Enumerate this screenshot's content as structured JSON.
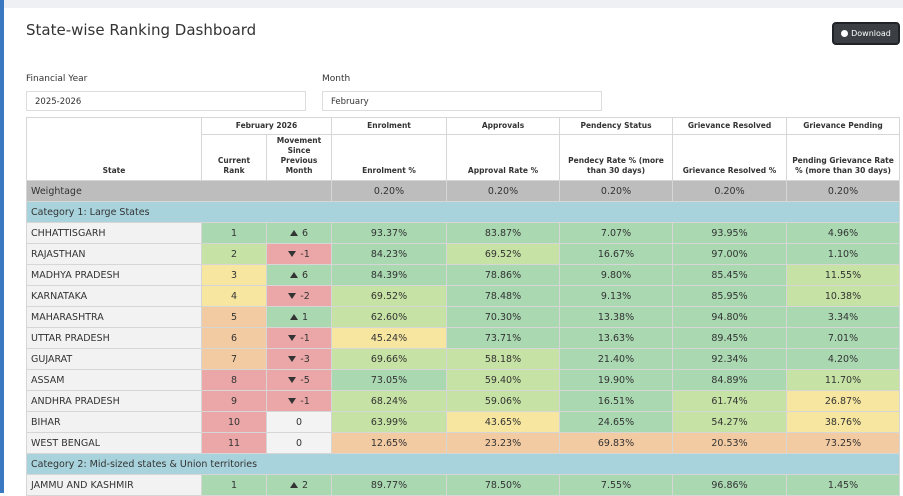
{
  "title": "State-wise Ranking Dashboard",
  "download": "Download",
  "filters": [
    {
      "label": "Financial Year",
      "value": "2025-2026"
    },
    {
      "label": "Month",
      "value": "February"
    }
  ],
  "table": {
    "header": {
      "period": "February 2026",
      "groups": [
        "Enrolment",
        "Approvals",
        "Pendency Status",
        "Grievance Resolved",
        "Grievance Pending"
      ],
      "columns": [
        "State",
        "Current Rank",
        "Movement Since Previous Month",
        "Enrolment %",
        "Approval Rate %",
        "Pendecy Rate % (more than 30 days)",
        "Grievance Resolved %",
        "Pending Grievance Rate % (more than 30 days)"
      ]
    },
    "weightage": {
      "label": "Weightage",
      "values": [
        "0.20%",
        "0.20%",
        "0.20%",
        "0.20%",
        "0.20%"
      ]
    },
    "rows": [
      {
        "category": "Category 1: Large States"
      },
      {
        "state": "CHHATTISGARH",
        "rank": 1,
        "movement": 6,
        "values": [
          "93.37%",
          "83.87%",
          "7.07%",
          "93.95%",
          "4.96%"
        ],
        "colors": [
          "#a9d8b1",
          "#a9d8b1",
          "#a9d8b1",
          "#a9d8b1",
          "#a9d8b1",
          "#a9d8b1",
          "#a9d8b1"
        ]
      },
      {
        "state": "RAJASTHAN",
        "rank": 2,
        "movement": -1,
        "values": [
          "84.23%",
          "69.52%",
          "16.67%",
          "97.00%",
          "1.10%"
        ],
        "colors": [
          "#c6e2a4",
          "#eba7a7",
          "#a9d8b1",
          "#c6e2a4",
          "#a9d8b1",
          "#a9d8b1",
          "#a9d8b1"
        ]
      },
      {
        "state": "MADHYA PRADESH",
        "rank": 3,
        "movement": 6,
        "values": [
          "84.39%",
          "78.86%",
          "9.80%",
          "85.45%",
          "11.55%"
        ],
        "colors": [
          "#f6e6a0",
          "#a9d8b1",
          "#a9d8b1",
          "#a9d8b1",
          "#a9d8b1",
          "#a9d8b1",
          "#c6e2a4"
        ]
      },
      {
        "state": "KARNATAKA",
        "rank": 4,
        "movement": -2,
        "values": [
          "69.52%",
          "78.48%",
          "9.13%",
          "85.95%",
          "10.38%"
        ],
        "colors": [
          "#f6e6a0",
          "#eba7a7",
          "#c6e2a4",
          "#a9d8b1",
          "#a9d8b1",
          "#a9d8b1",
          "#c6e2a4"
        ]
      },
      {
        "state": "MAHARASHTRA",
        "rank": 5,
        "movement": 1,
        "values": [
          "62.60%",
          "70.30%",
          "13.38%",
          "94.80%",
          "3.34%"
        ],
        "colors": [
          "#f3cba2",
          "#a9d8b1",
          "#c6e2a4",
          "#a9d8b1",
          "#a9d8b1",
          "#a9d8b1",
          "#a9d8b1"
        ]
      },
      {
        "state": "UTTAR PRADESH",
        "rank": 6,
        "movement": -1,
        "values": [
          "45.24%",
          "73.71%",
          "13.63%",
          "89.45%",
          "7.01%"
        ],
        "colors": [
          "#f3cba2",
          "#eba7a7",
          "#f6e6a0",
          "#a9d8b1",
          "#a9d8b1",
          "#a9d8b1",
          "#a9d8b1"
        ]
      },
      {
        "state": "GUJARAT",
        "rank": 7,
        "movement": -3,
        "values": [
          "69.66%",
          "58.18%",
          "21.40%",
          "92.34%",
          "4.20%"
        ],
        "colors": [
          "#f3cba2",
          "#eba7a7",
          "#c6e2a4",
          "#c6e2a4",
          "#a9d8b1",
          "#a9d8b1",
          "#a9d8b1"
        ]
      },
      {
        "state": "ASSAM",
        "rank": 8,
        "movement": -5,
        "values": [
          "73.05%",
          "59.40%",
          "19.90%",
          "84.89%",
          "11.70%"
        ],
        "colors": [
          "#eba7a7",
          "#eba7a7",
          "#a9d8b1",
          "#c6e2a4",
          "#a9d8b1",
          "#a9d8b1",
          "#c6e2a4"
        ]
      },
      {
        "state": "ANDHRA PRADESH",
        "rank": 9,
        "movement": -1,
        "values": [
          "68.24%",
          "59.06%",
          "16.51%",
          "61.74%",
          "26.87%"
        ],
        "colors": [
          "#eba7a7",
          "#eba7a7",
          "#c6e2a4",
          "#c6e2a4",
          "#a9d8b1",
          "#c6e2a4",
          "#f6e6a0"
        ]
      },
      {
        "state": "BIHAR",
        "rank": 10,
        "movement": 0,
        "values": [
          "63.99%",
          "43.65%",
          "24.65%",
          "54.27%",
          "38.76%"
        ],
        "colors": [
          "#eba7a7",
          "#f3f3f3",
          "#c6e2a4",
          "#f6e6a0",
          "#a9d8b1",
          "#c6e2a4",
          "#f6e6a0"
        ]
      },
      {
        "state": "WEST BENGAL",
        "rank": 11,
        "movement": 0,
        "values": [
          "12.65%",
          "23.23%",
          "69.83%",
          "20.53%",
          "73.25%"
        ],
        "colors": [
          "#eba7a7",
          "#f3f3f3",
          "#f3cba2",
          "#f3cba2",
          "#f3cba2",
          "#f3cba2",
          "#f3cba2"
        ]
      },
      {
        "category": "Category 2: Mid-sized states & Union territories"
      },
      {
        "state": "JAMMU AND KASHMIR",
        "rank": 1,
        "movement": 2,
        "values": [
          "89.77%",
          "78.50%",
          "7.55%",
          "96.86%",
          "1.45%"
        ],
        "colors": [
          "#a9d8b1",
          "#a9d8b1",
          "#a9d8b1",
          "#a9d8b1",
          "#a9d8b1",
          "#a9d8b1",
          "#a9d8b1"
        ]
      }
    ]
  }
}
